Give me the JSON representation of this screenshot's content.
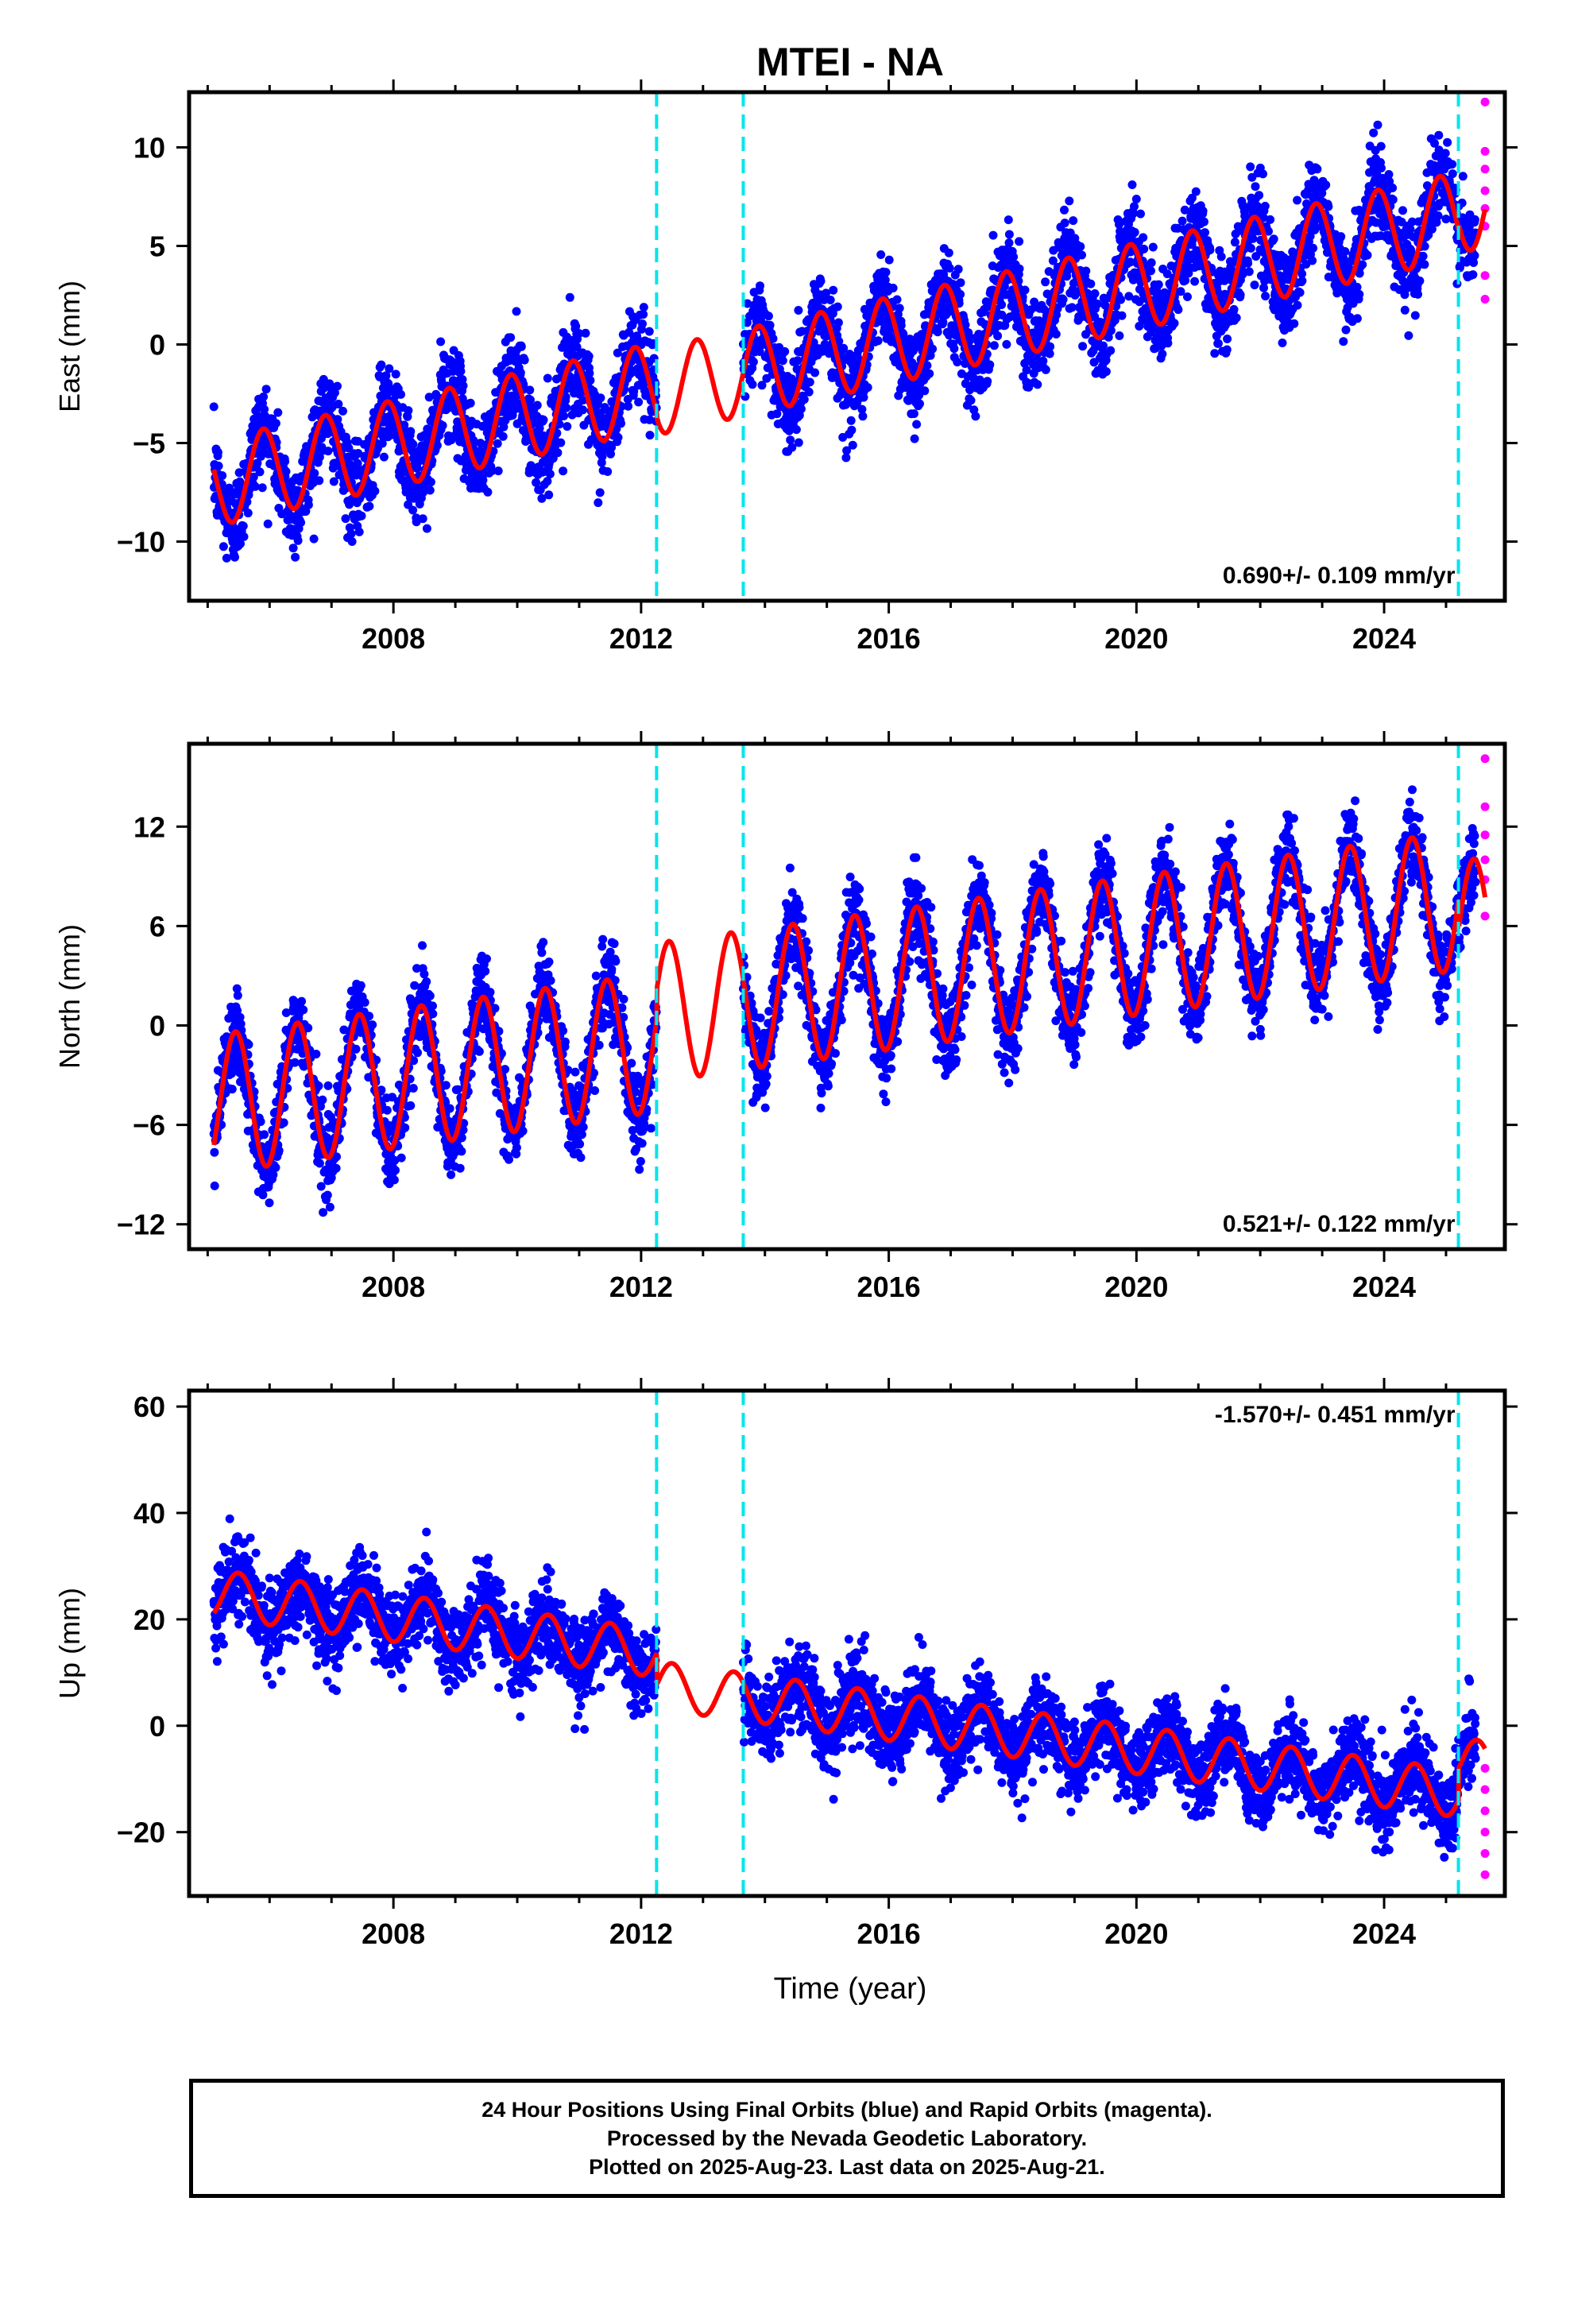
{
  "title": "MTEI - NA",
  "colors": {
    "final_orbits": "#0000ff",
    "rapid_orbits": "#ff00ff",
    "model": "#ff0000",
    "offsets": "#00e5ee",
    "frame": "#000000"
  },
  "x_axis": {
    "label": "Time (year)",
    "ticks": [
      2008,
      2012,
      2016,
      2020,
      2024
    ],
    "tick_labels": [
      "2008",
      "2012",
      "2016",
      "2020",
      "2024"
    ],
    "range": [
      2004.7,
      2025.95
    ]
  },
  "caption": {
    "line1": "24 Hour Positions Using Final Orbits (blue) and Rapid Orbits (magenta).",
    "line2": "Processed by the Nevada Geodetic Laboratory.",
    "line3": "Plotted on 2025-Aug-23. Last data on 2025-Aug-21."
  },
  "chart_data": [
    {
      "type": "scatter",
      "component": "east",
      "ylabel": "East (mm)",
      "rate_label": "0.690+/- 0.109 mm/yr",
      "ylim": [
        -13,
        12.8
      ],
      "yticks": [
        -10,
        -5,
        0,
        5,
        10
      ],
      "ytick_labels": [
        "−10",
        "−5",
        "0",
        "5",
        "10"
      ],
      "offsets": [
        2012.25,
        2013.65,
        2025.2
      ],
      "data_span": [
        2005.1,
        2025.63
      ],
      "gap": [
        2012.25,
        2013.65
      ],
      "model": {
        "rate": 0.69,
        "intercept_at_2005": -7.1,
        "annual_amplitude": 2.2,
        "annual_peak": 0.9,
        "segment_offsets": [
          0,
          -0.3,
          0
        ]
      },
      "series": [
        {
          "name": "Final Orbits",
          "color": "blue",
          "scatter_sd": 1.15
        },
        {
          "name": "Rapid Orbits",
          "color": "magenta",
          "x": [
            2025.63,
            2025.63,
            2025.63,
            2025.63,
            2025.63,
            2025.63,
            2025.63,
            2025.63
          ],
          "y": [
            12.3,
            9.8,
            8.9,
            7.8,
            6.9,
            6.0,
            3.5,
            2.3
          ]
        }
      ]
    },
    {
      "type": "scatter",
      "component": "north",
      "ylabel": "North (mm)",
      "rate_label": "0.521+/- 0.122 mm/yr",
      "ylim": [
        -13.5,
        17
      ],
      "yticks": [
        -12,
        -6,
        0,
        6,
        12
      ],
      "ytick_labels": [
        "−12",
        "−6",
        "0",
        "6",
        "12"
      ],
      "offsets": [
        2012.25,
        2013.65,
        2025.2
      ],
      "data_span": [
        2005.1,
        2025.63
      ],
      "gap": [
        2012.25,
        2013.65
      ],
      "model": {
        "rate": 0.521,
        "intercept_at_2005": -4.8,
        "annual_amplitude": 4.2,
        "annual_peak": 0.45,
        "segment_offsets": [
          0,
          1.8,
          0
        ]
      },
      "series": [
        {
          "name": "Final Orbits",
          "color": "blue",
          "scatter_sd": 1.2
        },
        {
          "name": "Rapid Orbits",
          "color": "magenta",
          "x": [
            2025.63,
            2025.63,
            2025.63,
            2025.63,
            2025.63,
            2025.63
          ],
          "y": [
            16.1,
            13.2,
            11.5,
            10.0,
            8.8,
            6.6
          ]
        }
      ]
    },
    {
      "type": "scatter",
      "component": "up",
      "ylabel": "Up (mm)",
      "rate_label": "-1.570+/- 0.451 mm/yr",
      "ylim": [
        -32,
        63
      ],
      "yticks": [
        -20,
        0,
        20,
        40,
        60
      ],
      "ytick_labels": [
        "−20",
        "0",
        "20",
        "40",
        "60"
      ],
      "offsets": [
        2012.25,
        2013.65,
        2025.2
      ],
      "data_span": [
        2005.1,
        2025.63
      ],
      "gap": [
        2012.25,
        2013.65
      ],
      "model": {
        "rate": -1.57,
        "intercept_at_2005": 25,
        "annual_amplitude": 4.5,
        "annual_peak": 0.5,
        "segment_offsets": [
          0,
          -6,
          0
        ]
      },
      "series": [
        {
          "name": "Final Orbits",
          "color": "blue",
          "scatter_sd": 3.8
        },
        {
          "name": "Rapid Orbits",
          "color": "magenta",
          "x": [
            2025.63,
            2025.63,
            2025.63,
            2025.63,
            2025.63,
            2025.63
          ],
          "y": [
            -8,
            -12,
            -16,
            -20,
            -24,
            -28
          ]
        }
      ]
    }
  ]
}
